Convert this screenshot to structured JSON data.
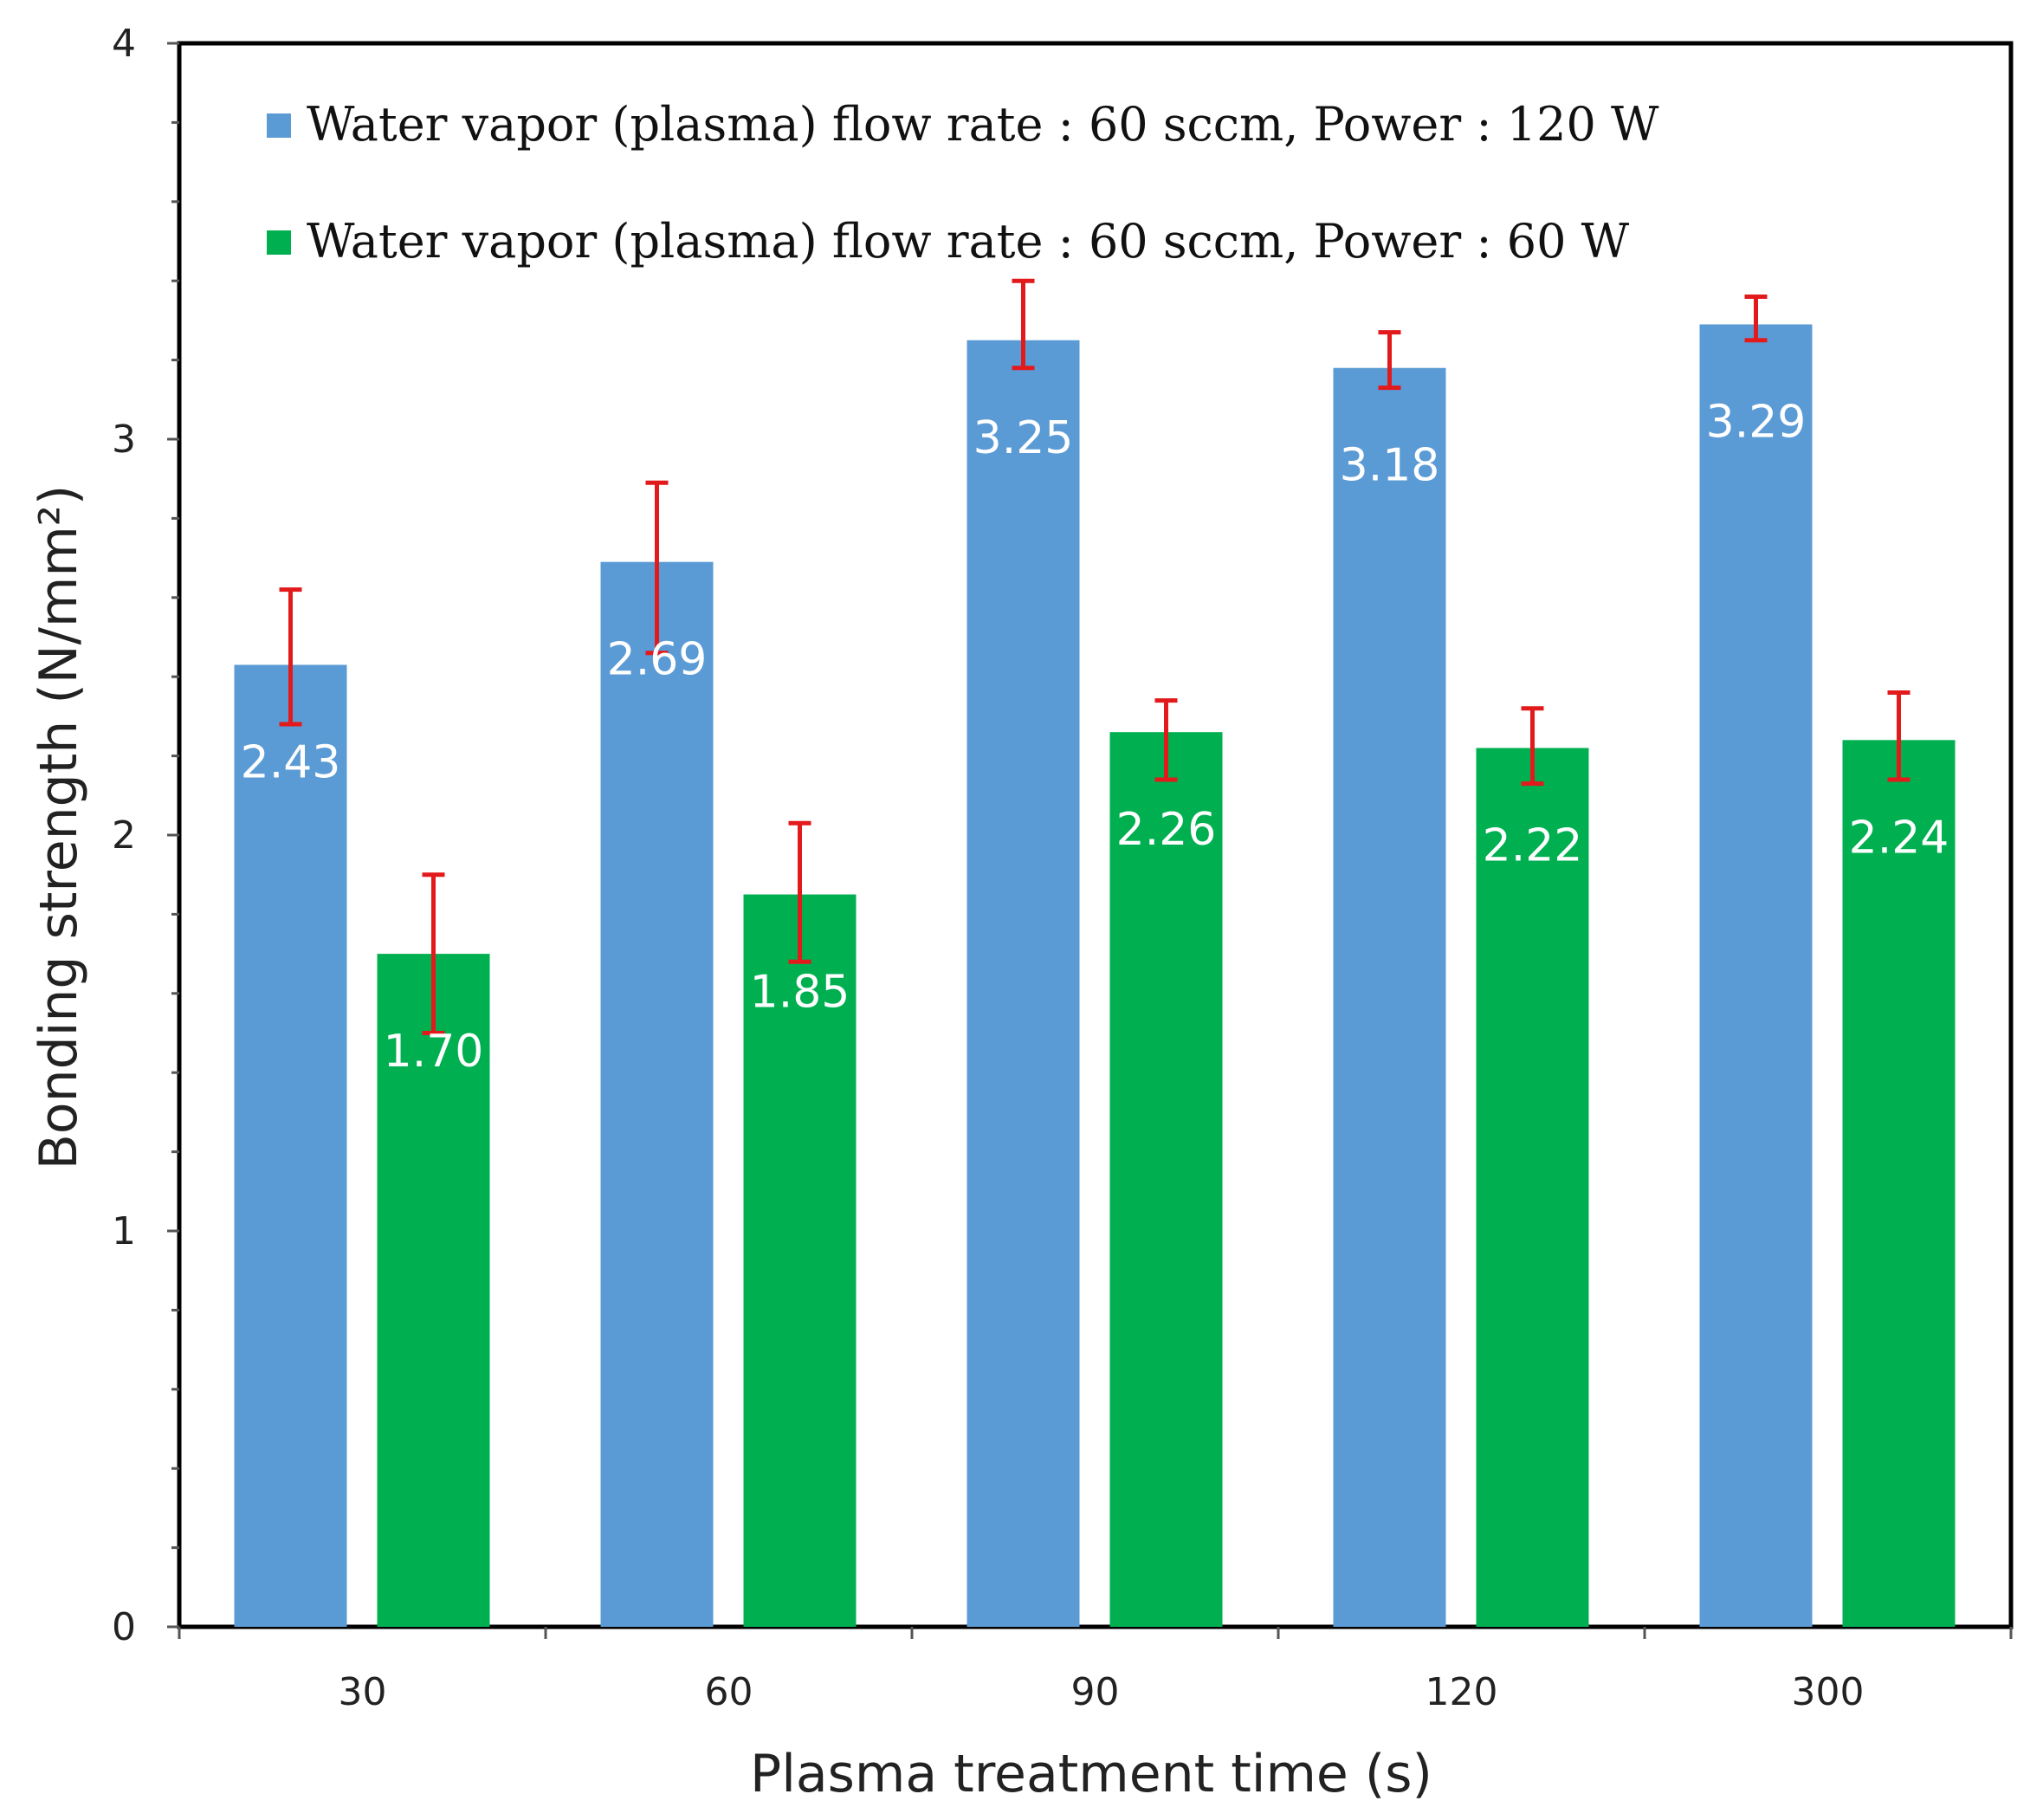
{
  "chart_data": {
    "type": "bar",
    "categories": [
      "30",
      "60",
      "90",
      "120",
      "300"
    ],
    "series": [
      {
        "name": "Water vapor (plasma) flow rate : 60 sccm, Power : 120 W",
        "color": "#5b9bd5",
        "values": [
          2.43,
          2.69,
          3.25,
          3.18,
          3.29
        ],
        "labels": [
          "2.43",
          "2.69",
          "3.25",
          "3.18",
          "3.29"
        ],
        "error_low": [
          2.28,
          2.46,
          3.18,
          3.13,
          3.25
        ],
        "error_high": [
          2.62,
          2.89,
          3.4,
          3.27,
          3.36
        ]
      },
      {
        "name": "Water vapor (plasma) flow rate : 60 sccm, Power : 60 W",
        "color": "#00b050",
        "values": [
          1.7,
          1.85,
          2.26,
          2.22,
          2.24
        ],
        "labels": [
          "1.70",
          "1.85",
          "2.26",
          "2.22",
          "2.24"
        ],
        "error_low": [
          1.5,
          1.68,
          2.14,
          2.13,
          2.14
        ],
        "error_high": [
          1.9,
          2.03,
          2.34,
          2.32,
          2.36
        ]
      }
    ],
    "error_bar_color": "#e31a1c",
    "xlabel": "Plasma treatment time (s)",
    "ylabel": "Bonding strength (N/mm²)",
    "ylim": [
      0,
      4
    ],
    "yticks": [
      "0",
      "1",
      "2",
      "3",
      "4"
    ],
    "grid": false,
    "legend_position": "top-left"
  }
}
